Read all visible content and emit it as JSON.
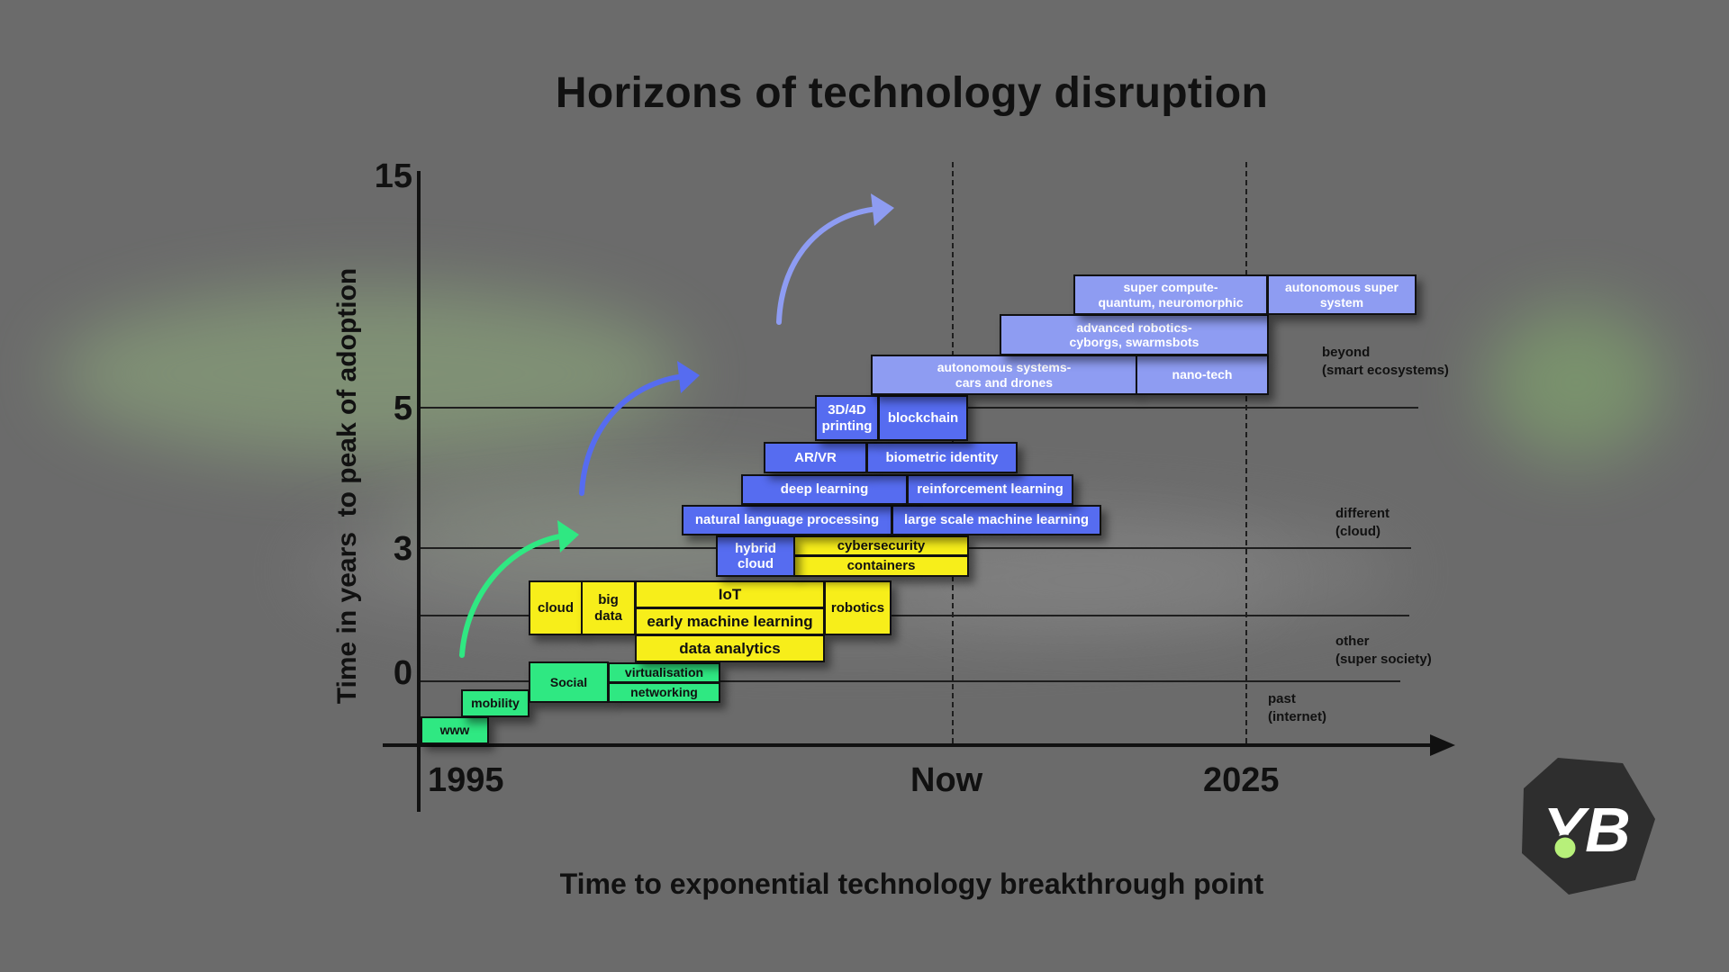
{
  "title": "Horizons of technology disruption",
  "x_axis_title": "Time to exponential technology breakthrough point",
  "y_axis_title": "Time in years  to peak of adoption",
  "y_ticks": [
    "15",
    "5",
    "3",
    "0"
  ],
  "x_ticks": [
    "1995",
    "Now",
    "2025"
  ],
  "regions": [
    "beyond\n(smart ecosystems)",
    "different\n(cloud)",
    "other\n(super society)",
    "past\n(internet)"
  ],
  "tiles": [
    {
      "label": "www",
      "color": "green"
    },
    {
      "label": "mobility",
      "color": "green"
    },
    {
      "label": "Social",
      "color": "green"
    },
    {
      "label": "virtualisation",
      "color": "green"
    },
    {
      "label": "networking",
      "color": "green"
    },
    {
      "label": "cloud",
      "color": "yellow"
    },
    {
      "label": "big\ndata",
      "color": "yellow"
    },
    {
      "label": "IoT",
      "color": "yellow"
    },
    {
      "label": "early machine learning",
      "color": "yellow"
    },
    {
      "label": "data analytics",
      "color": "yellow"
    },
    {
      "label": "robotics",
      "color": "yellow"
    },
    {
      "label": "cybersecurity",
      "color": "yellow"
    },
    {
      "label": "containers",
      "color": "yellow"
    },
    {
      "label": "hybrid\ncloud",
      "color": "blue"
    },
    {
      "label": "natural language processing",
      "color": "blue"
    },
    {
      "label": "large scale machine learning",
      "color": "blue"
    },
    {
      "label": "deep learning",
      "color": "blue"
    },
    {
      "label": "reinforcement learning",
      "color": "blue"
    },
    {
      "label": "AR/VR",
      "color": "blue"
    },
    {
      "label": "biometric identity",
      "color": "blue"
    },
    {
      "label": "3D/4D\nprinting",
      "color": "blue"
    },
    {
      "label": "blockchain",
      "color": "blue"
    },
    {
      "label": "autonomous systems-\ncars and drones",
      "color": "light-blue"
    },
    {
      "label": "nano-tech",
      "color": "light-blue"
    },
    {
      "label": "advanced robotics-\ncyborgs, swarmsbots",
      "color": "light-blue"
    },
    {
      "label": "super compute-\nquantum, neuromorphic",
      "color": "light-blue"
    },
    {
      "label": "autonomous super\nsystem",
      "color": "light-blue"
    }
  ],
  "colors": {
    "background": "#6b6b6b",
    "green": "#2fe882",
    "yellow": "#f7ee1a",
    "blue": "#566cf0",
    "light_blue": "#8e9cf2"
  }
}
